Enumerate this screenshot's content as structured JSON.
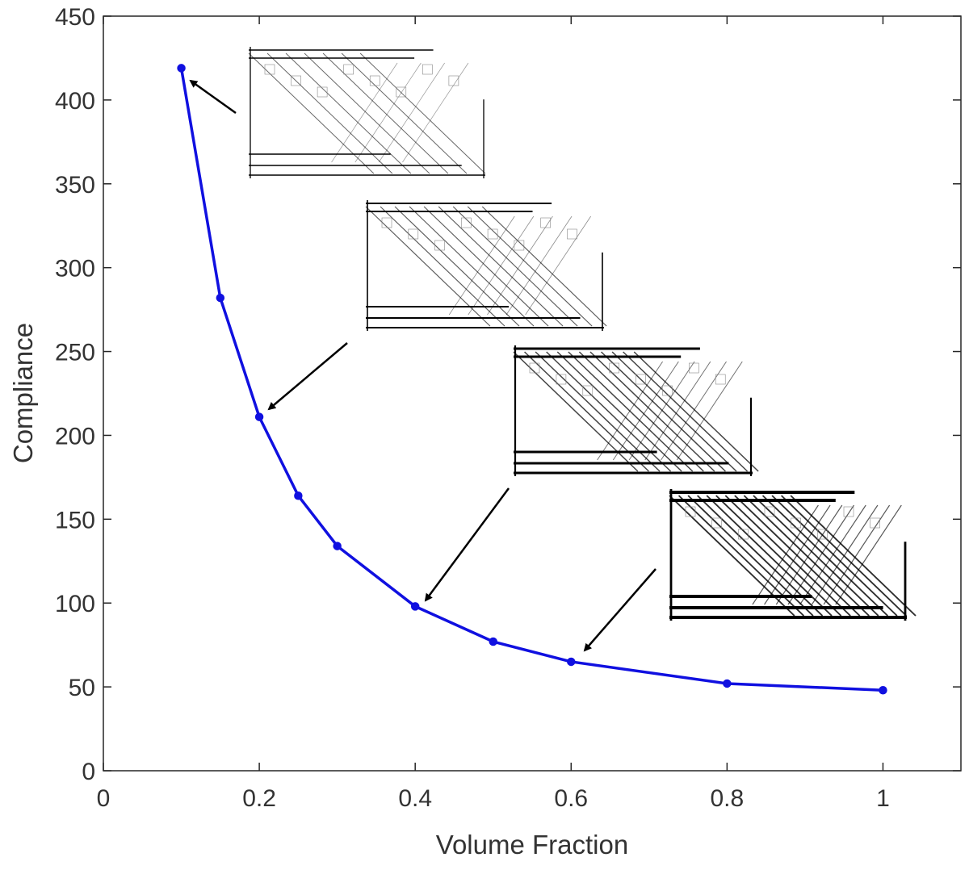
{
  "chart_data": {
    "type": "line",
    "xlabel": "Volume Fraction",
    "ylabel": "Compliance",
    "xlim": [
      0,
      1.1
    ],
    "ylim": [
      0,
      450
    ],
    "xticks": [
      0,
      0.2,
      0.4,
      0.6,
      0.8,
      1
    ],
    "xtick_labels": [
      "0",
      "0.2",
      "0.4",
      "0.6",
      "0.8",
      "1"
    ],
    "yticks": [
      0,
      50,
      100,
      150,
      200,
      250,
      300,
      350,
      400,
      450
    ],
    "ytick_labels": [
      "0",
      "50",
      "100",
      "150",
      "200",
      "250",
      "300",
      "350",
      "400",
      "450"
    ],
    "grid": false,
    "series": [
      {
        "color": "#1010e0",
        "marker": "circle",
        "x": [
          0.1,
          0.15,
          0.2,
          0.25,
          0.3,
          0.4,
          0.5,
          0.6,
          0.8,
          1.0
        ],
        "y": [
          419,
          282,
          211,
          164,
          134,
          98,
          77,
          65,
          52,
          48
        ]
      }
    ],
    "annotations": [
      {
        "type": "topology-inset",
        "points_to_x": 0.1,
        "points_to_y": 419,
        "density": 0.1
      },
      {
        "type": "topology-inset",
        "points_to_x": 0.2,
        "points_to_y": 211,
        "density": 0.2
      },
      {
        "type": "topology-inset",
        "points_to_x": 0.4,
        "points_to_y": 98,
        "density": 0.4
      },
      {
        "type": "topology-inset",
        "points_to_x": 0.6,
        "points_to_y": 65,
        "density": 0.6
      }
    ]
  }
}
